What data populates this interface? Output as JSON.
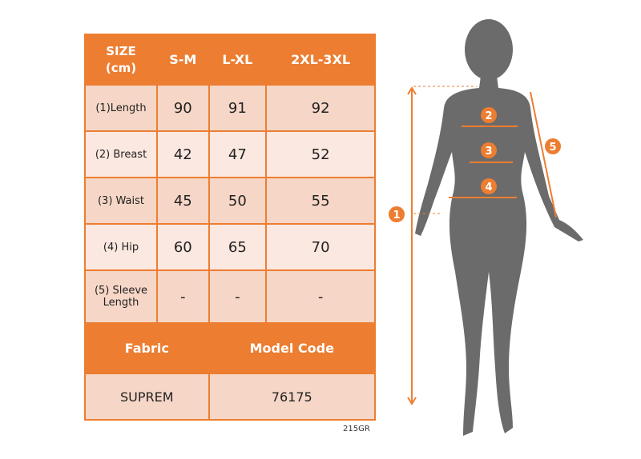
{
  "table": {
    "header": [
      "SIZE\n(cm)",
      "S-M",
      "L-XL",
      "2XL-3XL"
    ],
    "header_label_line1": "SIZE",
    "header_label_line2": "(cm)",
    "sizes": [
      "S-M",
      "L-XL",
      "2XL-3XL"
    ],
    "rows": [
      {
        "label": "(1)Length",
        "values": [
          "90",
          "91",
          "92"
        ]
      },
      {
        "label": "(2) Breast",
        "values": [
          "42",
          "47",
          "52"
        ]
      },
      {
        "label": "(3) Waist",
        "values": [
          "45",
          "50",
          "55"
        ]
      },
      {
        "label": "(4) Hip",
        "values": [
          "60",
          "65",
          "70"
        ]
      },
      {
        "label": "(5) Sleeve Length",
        "label_line1": "(5) Sleeve",
        "label_line2": "Length",
        "values": [
          "-",
          "-",
          "-"
        ]
      }
    ],
    "fabric_label": "Fabric",
    "model_code_label": "Model Code",
    "fabric_value": "SUPREM",
    "model_code_value": "76175"
  },
  "footnote": "215GR",
  "figure": {
    "markers": [
      "1",
      "2",
      "3",
      "4",
      "5"
    ],
    "icon": "female-silhouette-measurement-diagram"
  },
  "colors": {
    "accent": "#ED7D31",
    "row_dark": "#F6D6C6",
    "row_light": "#FBE8E0",
    "silhouette": "#6B6B6B"
  }
}
